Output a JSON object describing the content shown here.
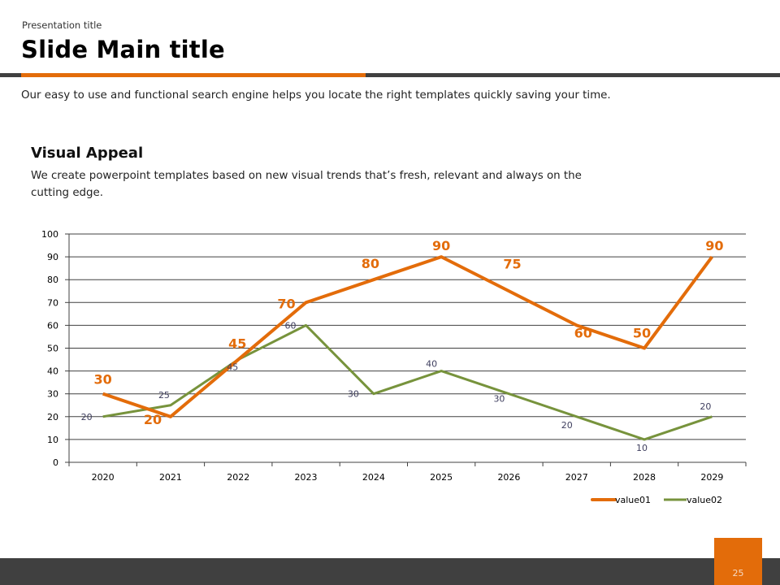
{
  "header": {
    "presentation_title": "Presentation title",
    "main_title": "Slide Main title"
  },
  "intro_text": "Our easy to use and functional search engine helps you locate the right templates quickly saving your time.",
  "section": {
    "title": "Visual Appeal",
    "body": "We create powerpoint templates based on new visual trends that’s fresh, relevant and always on the cutting edge."
  },
  "colors": {
    "accent": "#e36c0a",
    "dark": "#404040",
    "series1": "#e36c0a",
    "series2": "#77933c",
    "series2_label": "#3f3f5f"
  },
  "footer": {
    "page_number": "25"
  },
  "chart_data": {
    "type": "line",
    "title": "",
    "xlabel": "",
    "ylabel": "",
    "categories": [
      "2020",
      "2021",
      "2022",
      "2023",
      "2024",
      "2025",
      "2026",
      "2027",
      "2028",
      "2029"
    ],
    "ylim": [
      0,
      100
    ],
    "yticks": [
      0,
      10,
      20,
      30,
      40,
      50,
      60,
      70,
      80,
      90,
      100
    ],
    "grid": true,
    "legend_position": "bottom-right",
    "data_labels": true,
    "series": [
      {
        "name": "value01",
        "color": "#e36c0a",
        "values": [
          30,
          20,
          45,
          70,
          80,
          90,
          75,
          60,
          50,
          90
        ]
      },
      {
        "name": "value02",
        "color": "#77933c",
        "values": [
          20,
          25,
          45,
          60,
          30,
          40,
          30,
          20,
          10,
          20
        ]
      }
    ]
  }
}
